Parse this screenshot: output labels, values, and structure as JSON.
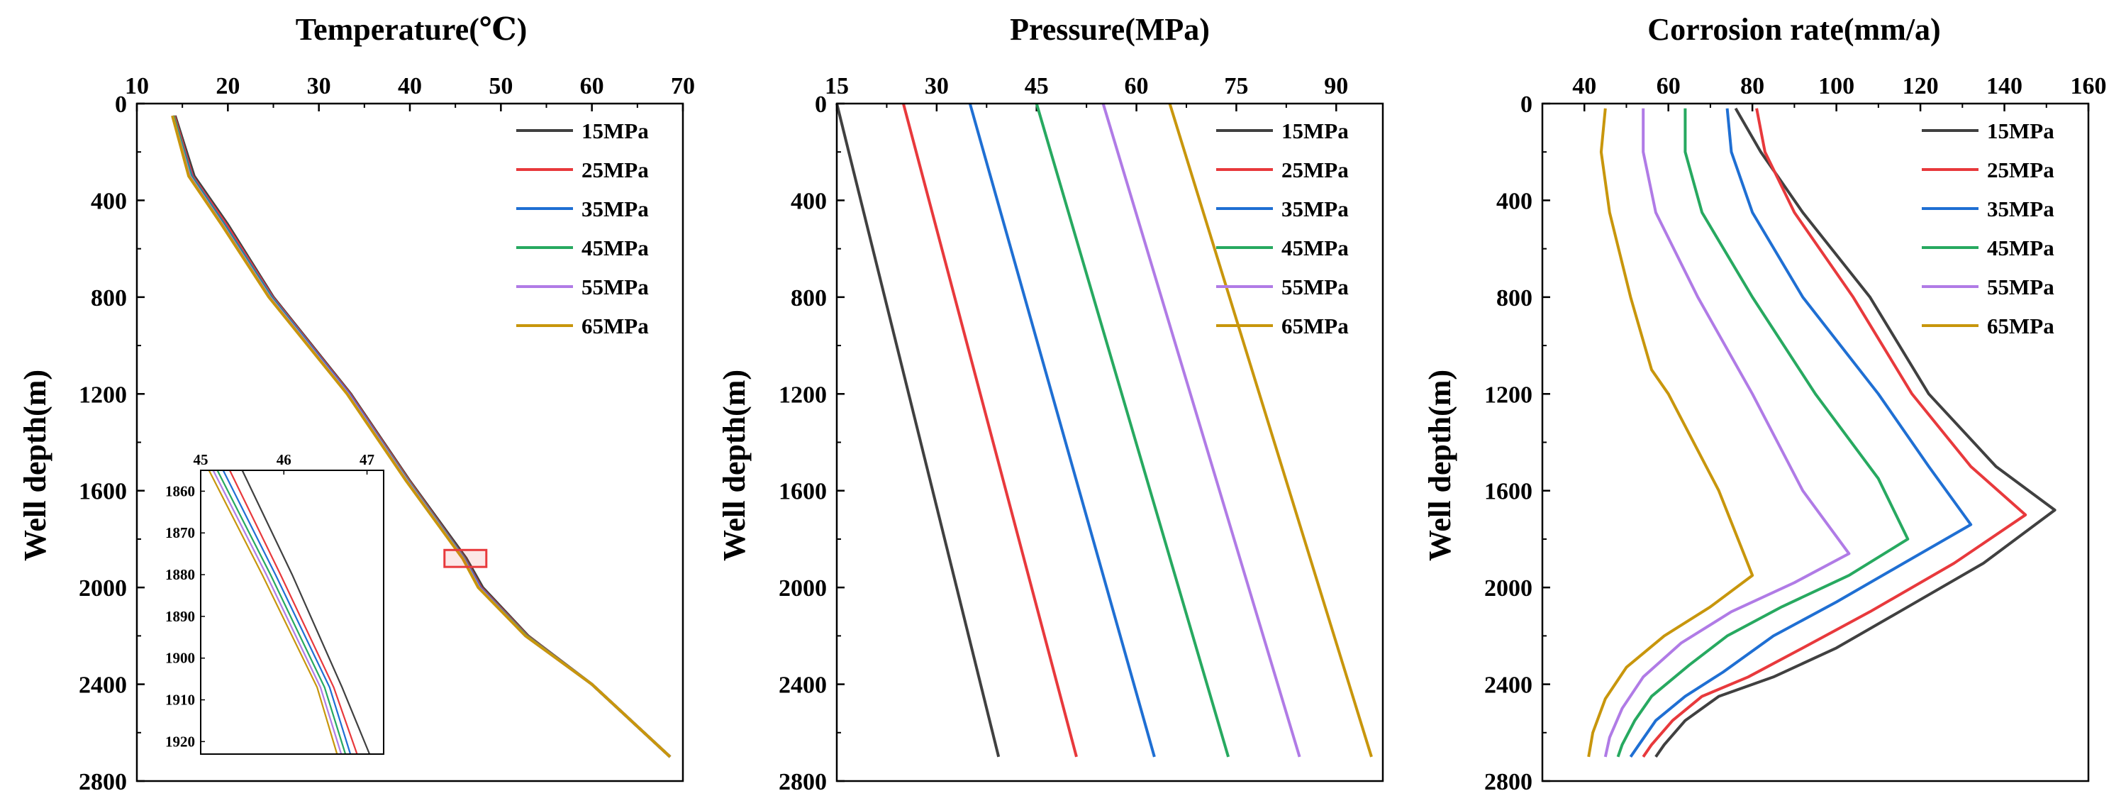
{
  "series_colors": [
    "#404040",
    "#e8393c",
    "#1f6fd3",
    "#27a960",
    "#b07be6",
    "#c8960c"
  ],
  "chart_data": [
    {
      "type": "line",
      "title": "Temperature(℃)",
      "xlabel": "Temperature(℃)",
      "ylabel": "Well depth(m)",
      "xlim": [
        10,
        70
      ],
      "ylim": [
        0,
        2800
      ],
      "y_inverted": true,
      "xticks": [
        10,
        20,
        30,
        40,
        50,
        60,
        70
      ],
      "yticks": [
        0,
        400,
        800,
        1200,
        1600,
        2000,
        2400,
        2800
      ],
      "legend": "top-right",
      "series": [
        {
          "name": "15MPa",
          "points": [
            [
              14.2,
              50
            ],
            [
              16.3,
              300
            ],
            [
              20,
              500
            ],
            [
              25,
              800
            ],
            [
              33.5,
              1200
            ],
            [
              40,
              1560
            ],
            [
              46.2,
              1880
            ],
            [
              48,
              2000
            ],
            [
              53,
              2200
            ],
            [
              60,
              2400
            ],
            [
              68.6,
              2700
            ]
          ]
        },
        {
          "name": "25MPa",
          "points": [
            [
              14.1,
              50
            ],
            [
              16.1,
              300
            ],
            [
              19.8,
              500
            ],
            [
              24.9,
              800
            ],
            [
              33.4,
              1200
            ],
            [
              39.9,
              1560
            ],
            [
              46.0,
              1880
            ],
            [
              47.8,
              2000
            ],
            [
              52.9,
              2200
            ],
            [
              60,
              2400
            ],
            [
              68.6,
              2700
            ]
          ]
        },
        {
          "name": "35MPa",
          "points": [
            [
              14.0,
              50
            ],
            [
              16.0,
              300
            ],
            [
              19.6,
              500
            ],
            [
              24.8,
              800
            ],
            [
              33.3,
              1200
            ],
            [
              39.8,
              1560
            ],
            [
              45.95,
              1880
            ],
            [
              47.7,
              2000
            ],
            [
              52.8,
              2200
            ],
            [
              60,
              2400
            ],
            [
              68.6,
              2700
            ]
          ]
        },
        {
          "name": "45MPa",
          "points": [
            [
              14.0,
              50
            ],
            [
              15.9,
              300
            ],
            [
              19.5,
              500
            ],
            [
              24.7,
              800
            ],
            [
              33.2,
              1200
            ],
            [
              39.8,
              1560
            ],
            [
              45.9,
              1880
            ],
            [
              47.6,
              2000
            ],
            [
              52.8,
              2200
            ],
            [
              60,
              2400
            ],
            [
              68.6,
              2700
            ]
          ]
        },
        {
          "name": "55MPa",
          "points": [
            [
              13.9,
              50
            ],
            [
              15.8,
              300
            ],
            [
              19.4,
              500
            ],
            [
              24.6,
              800
            ],
            [
              33.2,
              1200
            ],
            [
              39.7,
              1560
            ],
            [
              45.85,
              1880
            ],
            [
              47.6,
              2000
            ],
            [
              52.7,
              2200
            ],
            [
              60,
              2400
            ],
            [
              68.6,
              2700
            ]
          ]
        },
        {
          "name": "65MPa",
          "points": [
            [
              13.9,
              50
            ],
            [
              15.7,
              300
            ],
            [
              19.3,
              500
            ],
            [
              24.5,
              800
            ],
            [
              33.1,
              1200
            ],
            [
              39.6,
              1560
            ],
            [
              45.8,
              1880
            ],
            [
              47.5,
              2000
            ],
            [
              52.7,
              2200
            ],
            [
              60,
              2400
            ],
            [
              68.6,
              2700
            ]
          ]
        }
      ],
      "zoom_box": {
        "xlim": [
          43.8,
          48.4
        ],
        "ylim": [
          1845,
          1915
        ]
      },
      "inset": {
        "xlim": [
          45,
          47.2
        ],
        "ylim": [
          1855,
          1923
        ],
        "xticks": [
          45,
          46,
          47
        ],
        "yticks": [
          1860,
          1870,
          1880,
          1890,
          1900,
          1910,
          1920
        ],
        "series": [
          {
            "name": "15MPa",
            "points": [
              [
                45.5,
                1855
              ],
              [
                46.1,
                1880
              ],
              [
                46.7,
                1907
              ],
              [
                47.03,
                1923
              ]
            ]
          },
          {
            "name": "25MPa",
            "points": [
              [
                45.35,
                1855
              ],
              [
                45.96,
                1880
              ],
              [
                46.6,
                1907
              ],
              [
                46.88,
                1923
              ]
            ]
          },
          {
            "name": "35MPa",
            "points": [
              [
                45.27,
                1855
              ],
              [
                45.9,
                1880
              ],
              [
                46.55,
                1907
              ],
              [
                46.8,
                1923
              ]
            ]
          },
          {
            "name": "45MPa",
            "points": [
              [
                45.2,
                1855
              ],
              [
                45.84,
                1880
              ],
              [
                46.49,
                1907
              ],
              [
                46.74,
                1923
              ]
            ]
          },
          {
            "name": "55MPa",
            "points": [
              [
                45.15,
                1855
              ],
              [
                45.79,
                1880
              ],
              [
                46.44,
                1907
              ],
              [
                46.69,
                1923
              ]
            ]
          },
          {
            "name": "65MPa",
            "points": [
              [
                45.1,
                1855
              ],
              [
                45.74,
                1880
              ],
              [
                46.4,
                1907
              ],
              [
                46.64,
                1923
              ]
            ]
          }
        ]
      }
    },
    {
      "type": "line",
      "title": "Pressure(MPa)",
      "xlabel": "Pressure(MPa)",
      "ylabel": "Well depth(m)",
      "xlim": [
        15,
        97
      ],
      "ylim": [
        0,
        2800
      ],
      "y_inverted": true,
      "xticks": [
        15,
        30,
        45,
        60,
        75,
        90
      ],
      "yticks": [
        0,
        400,
        800,
        1200,
        1600,
        2000,
        2400,
        2800
      ],
      "legend": "top-right",
      "series": [
        {
          "name": "15MPa",
          "points": [
            [
              15,
              0
            ],
            [
              39.3,
              2700
            ]
          ]
        },
        {
          "name": "25MPa",
          "points": [
            [
              25,
              0
            ],
            [
              51,
              2700
            ]
          ]
        },
        {
          "name": "35MPa",
          "points": [
            [
              35,
              0
            ],
            [
              62.7,
              2700
            ]
          ]
        },
        {
          "name": "45MPa",
          "points": [
            [
              45,
              0
            ],
            [
              73.8,
              2700
            ]
          ]
        },
        {
          "name": "55MPa",
          "points": [
            [
              55,
              0
            ],
            [
              84.5,
              2700
            ]
          ]
        },
        {
          "name": "65MPa",
          "points": [
            [
              65,
              0
            ],
            [
              95.3,
              2700
            ]
          ]
        }
      ]
    },
    {
      "type": "line",
      "title": "Corrosion rate(mm/a)",
      "xlabel": "Corrosion rate(mm/a)",
      "ylabel": "Well depth(m)",
      "xlim": [
        30,
        160
      ],
      "ylim": [
        0,
        2800
      ],
      "y_inverted": true,
      "xticks": [
        40,
        60,
        80,
        100,
        120,
        140,
        160
      ],
      "yticks": [
        0,
        400,
        800,
        1200,
        1600,
        2000,
        2400,
        2800
      ],
      "legend": "top-right",
      "series": [
        {
          "name": "15MPa",
          "points": [
            [
              76,
              20
            ],
            [
              82,
              200
            ],
            [
              92,
              450
            ],
            [
              108,
              800
            ],
            [
              122,
              1200
            ],
            [
              138,
              1500
            ],
            [
              152,
              1680
            ],
            [
              135,
              1900
            ],
            [
              115,
              2100
            ],
            [
              100,
              2250
            ],
            [
              85,
              2370
            ],
            [
              72,
              2450
            ],
            [
              64,
              2550
            ],
            [
              59,
              2650
            ],
            [
              57,
              2700
            ]
          ]
        },
        {
          "name": "25MPa",
          "points": [
            [
              81,
              20
            ],
            [
              83,
              200
            ],
            [
              90,
              450
            ],
            [
              104,
              800
            ],
            [
              118,
              1200
            ],
            [
              132,
              1500
            ],
            [
              145,
              1700
            ],
            [
              128,
              1900
            ],
            [
              108,
              2100
            ],
            [
              92,
              2250
            ],
            [
              79,
              2370
            ],
            [
              68,
              2450
            ],
            [
              61,
              2550
            ],
            [
              56,
              2650
            ],
            [
              54,
              2700
            ]
          ]
        },
        {
          "name": "35MPa",
          "points": [
            [
              74,
              20
            ],
            [
              75,
              200
            ],
            [
              80,
              450
            ],
            [
              92,
              800
            ],
            [
              110,
              1200
            ],
            [
              122,
              1500
            ],
            [
              132,
              1740
            ],
            [
              116,
              1900
            ],
            [
              100,
              2060
            ],
            [
              85,
              2200
            ],
            [
              73,
              2350
            ],
            [
              64,
              2450
            ],
            [
              57,
              2550
            ],
            [
              53,
              2650
            ],
            [
              51,
              2700
            ]
          ]
        },
        {
          "name": "45MPa",
          "points": [
            [
              64,
              20
            ],
            [
              64,
              200
            ],
            [
              68,
              450
            ],
            [
              80,
              800
            ],
            [
              95,
              1200
            ],
            [
              110,
              1550
            ],
            [
              117,
              1800
            ],
            [
              103,
              1950
            ],
            [
              87,
              2080
            ],
            [
              74,
              2200
            ],
            [
              65,
              2320
            ],
            [
              56,
              2450
            ],
            [
              52,
              2550
            ],
            [
              49,
              2650
            ],
            [
              48,
              2700
            ]
          ]
        },
        {
          "name": "55MPa",
          "points": [
            [
              54,
              20
            ],
            [
              54,
              200
            ],
            [
              57,
              450
            ],
            [
              67,
              800
            ],
            [
              80,
              1200
            ],
            [
              92,
              1600
            ],
            [
              103,
              1860
            ],
            [
              90,
              1980
            ],
            [
              75,
              2100
            ],
            [
              63,
              2230
            ],
            [
              54,
              2370
            ],
            [
              49,
              2500
            ],
            [
              46,
              2620
            ],
            [
              45,
              2700
            ]
          ]
        },
        {
          "name": "65MPa",
          "points": [
            [
              45,
              20
            ],
            [
              44,
              200
            ],
            [
              46,
              450
            ],
            [
              51,
              800
            ],
            [
              56,
              1100
            ],
            [
              60,
              1200
            ],
            [
              72,
              1600
            ],
            [
              80,
              1950
            ],
            [
              70,
              2080
            ],
            [
              59,
              2200
            ],
            [
              50,
              2330
            ],
            [
              45,
              2460
            ],
            [
              42,
              2600
            ],
            [
              41,
              2700
            ]
          ]
        }
      ]
    }
  ]
}
